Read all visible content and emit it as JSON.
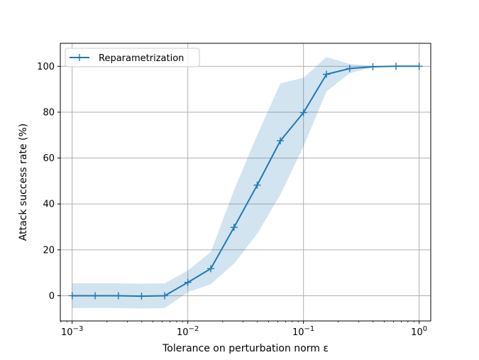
{
  "chart_data": {
    "type": "line",
    "xscale": "log",
    "xlabel": "Tolerance on perturbation norm ε",
    "ylabel": "Attack success rate (%)",
    "xlim": [
      0.00079,
      1.26
    ],
    "ylim": [
      -11,
      110
    ],
    "xticks": [
      {
        "value": 0.001,
        "base": "10",
        "exp": "−3"
      },
      {
        "value": 0.01,
        "base": "10",
        "exp": "−2"
      },
      {
        "value": 0.1,
        "base": "10",
        "exp": "−1"
      },
      {
        "value": 1,
        "base": "10",
        "exp": "0"
      }
    ],
    "yticks": [
      "0",
      "20",
      "40",
      "60",
      "80",
      "100"
    ],
    "grid": true,
    "legend": "top-left",
    "color": "#1f77b4",
    "band_color": "#1f77b4",
    "series": [
      {
        "name": "Reparametrization",
        "x": [
          0.001,
          0.00158,
          0.00251,
          0.00398,
          0.00631,
          0.01,
          0.0158,
          0.0251,
          0.0398,
          0.0631,
          0.1,
          0.158,
          0.251,
          0.398,
          0.631,
          1.0
        ],
        "y": [
          0,
          0,
          0,
          -0.2,
          0,
          5.8,
          11.8,
          29.8,
          48.2,
          67.5,
          79.8,
          96.5,
          99.0,
          99.8,
          100,
          100
        ],
        "lower": [
          -5.4,
          -5.4,
          -5.4,
          -5.6,
          -5.4,
          1.5,
          5.0,
          14.0,
          27.0,
          44.0,
          65.0,
          89.0,
          97.0,
          99.5,
          100,
          100
        ],
        "upper": [
          5.4,
          5.4,
          5.4,
          5.2,
          5.4,
          11.0,
          19.0,
          46.0,
          70.0,
          92.5,
          95.0,
          104.0,
          101.0,
          100.2,
          100,
          100
        ]
      }
    ]
  }
}
